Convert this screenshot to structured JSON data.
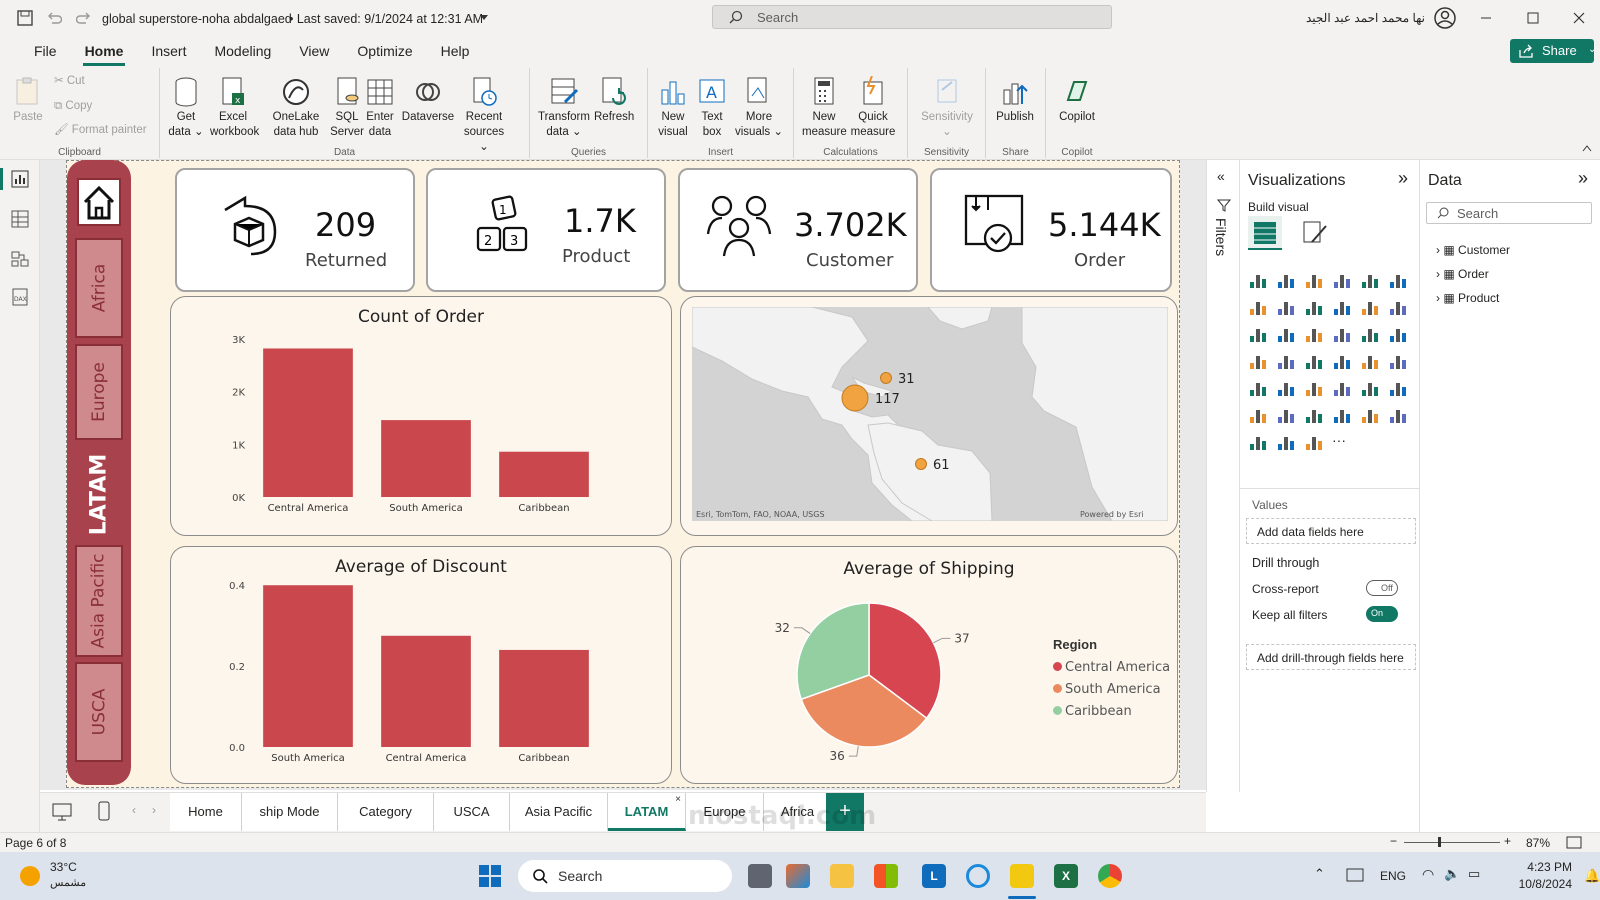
{
  "titlebar": {
    "title": "global superstore-noha abdalgaed",
    "saved": "• Last saved: 9/1/2024 at 12:31 AM",
    "search_placeholder": "Search",
    "user": "نها محمد احمد عبد الجيد"
  },
  "menu": [
    "File",
    "Home",
    "Insert",
    "Modeling",
    "View",
    "Optimize",
    "Help"
  ],
  "share_label": "Share",
  "ribbon": {
    "clipboard": {
      "label": "Clipboard",
      "paste": "Paste",
      "cut": "Cut",
      "copy": "Copy",
      "format_painter": "Format painter"
    },
    "data": {
      "label": "Data",
      "get_data": "Get data",
      "excel": "Excel workbook",
      "onelake": "OneLake data hub",
      "sql": "SQL Server",
      "enter": "Enter data",
      "dataverse": "Dataverse",
      "recent": "Recent sources"
    },
    "queries": {
      "label": "Queries",
      "transform": "Transform data",
      "refresh": "Refresh"
    },
    "insert": {
      "label": "Insert",
      "new_visual": "New visual",
      "text_box": "Text box",
      "more_visuals": "More visuals"
    },
    "calculations": {
      "label": "Calculations",
      "new_measure": "New measure",
      "quick_measure": "Quick measure"
    },
    "sensitivity": {
      "label": "Sensitivity",
      "btn": "Sensitivity"
    },
    "share": {
      "label": "Share",
      "publish": "Publish"
    },
    "copilot": {
      "label": "Copilot",
      "btn": "Copilot"
    }
  },
  "nav": {
    "items": [
      "Africa",
      "Europe",
      "LATAM",
      "Asia Pacific",
      "USCA"
    ],
    "active": "LATAM"
  },
  "kpis": [
    {
      "value": "209",
      "label": "Returned"
    },
    {
      "value": "1.7K",
      "label": "Product"
    },
    {
      "value": "3.702K",
      "label": "Customer"
    },
    {
      "value": "5.144K",
      "label": "Order"
    }
  ],
  "map": {
    "attribution": "Esri, TomTom, FAO, NOAA, USGS",
    "powered": "Powered by Esri",
    "points": [
      {
        "label": "31"
      },
      {
        "label": "117"
      },
      {
        "label": "61"
      }
    ]
  },
  "chart_data": [
    {
      "type": "bar",
      "title": "Count of Order",
      "categories": [
        "Central America",
        "South America",
        "Caribbean"
      ],
      "values": [
        2820,
        1460,
        860
      ],
      "ylim": [
        0,
        3000
      ],
      "yticks": [
        "0K",
        "1K",
        "2K",
        "3K"
      ],
      "tick_values": [
        0,
        1000,
        2000,
        3000
      ],
      "color": "#c9474d"
    },
    {
      "type": "bar",
      "title": "Average of Discount",
      "categories": [
        "South America",
        "Central America",
        "Caribbean"
      ],
      "values": [
        0.4,
        0.275,
        0.24
      ],
      "ylim": [
        0,
        0.45
      ],
      "yticks": [
        "0.0",
        "0.2",
        "0.4"
      ],
      "tick_values": [
        0,
        0.2,
        0.4
      ],
      "color": "#c9474d"
    },
    {
      "type": "pie",
      "title": "Average of Shipping",
      "legend_title": "Region",
      "slices": [
        {
          "name": "Central America",
          "value": 37,
          "color": "#d64550"
        },
        {
          "name": "South America",
          "value": 36,
          "color": "#ea8a5e"
        },
        {
          "name": "Caribbean",
          "value": 32,
          "color": "#94cfa2"
        }
      ],
      "legend": "right"
    }
  ],
  "filters_label": "Filters",
  "viz": {
    "title": "Visualizations",
    "build": "Build visual",
    "values": "Values",
    "add_fields": "Add data fields here",
    "drill": "Drill through",
    "cross": "Cross-report",
    "cross_state": "Off",
    "keep": "Keep all filters",
    "keep_state": "On",
    "add_drill": "Add drill-through fields here"
  },
  "datapane": {
    "title": "Data",
    "search": "Search",
    "tables": [
      "Customer",
      "Order",
      "Product"
    ]
  },
  "tabs": [
    "Home",
    "ship Mode",
    "Category",
    "USCA",
    "Asia Pacific",
    "LATAM",
    "Europe",
    "Africa"
  ],
  "active_tab": "LATAM",
  "status": {
    "page": "Page 6 of 8",
    "zoom": "87%"
  },
  "taskbar": {
    "temp": "33°C",
    "weather": "مشمس",
    "search": "Search",
    "lang": "ENG",
    "time": "4:23 PM",
    "date": "10/8/2024"
  },
  "watermark": "mostaql.com"
}
